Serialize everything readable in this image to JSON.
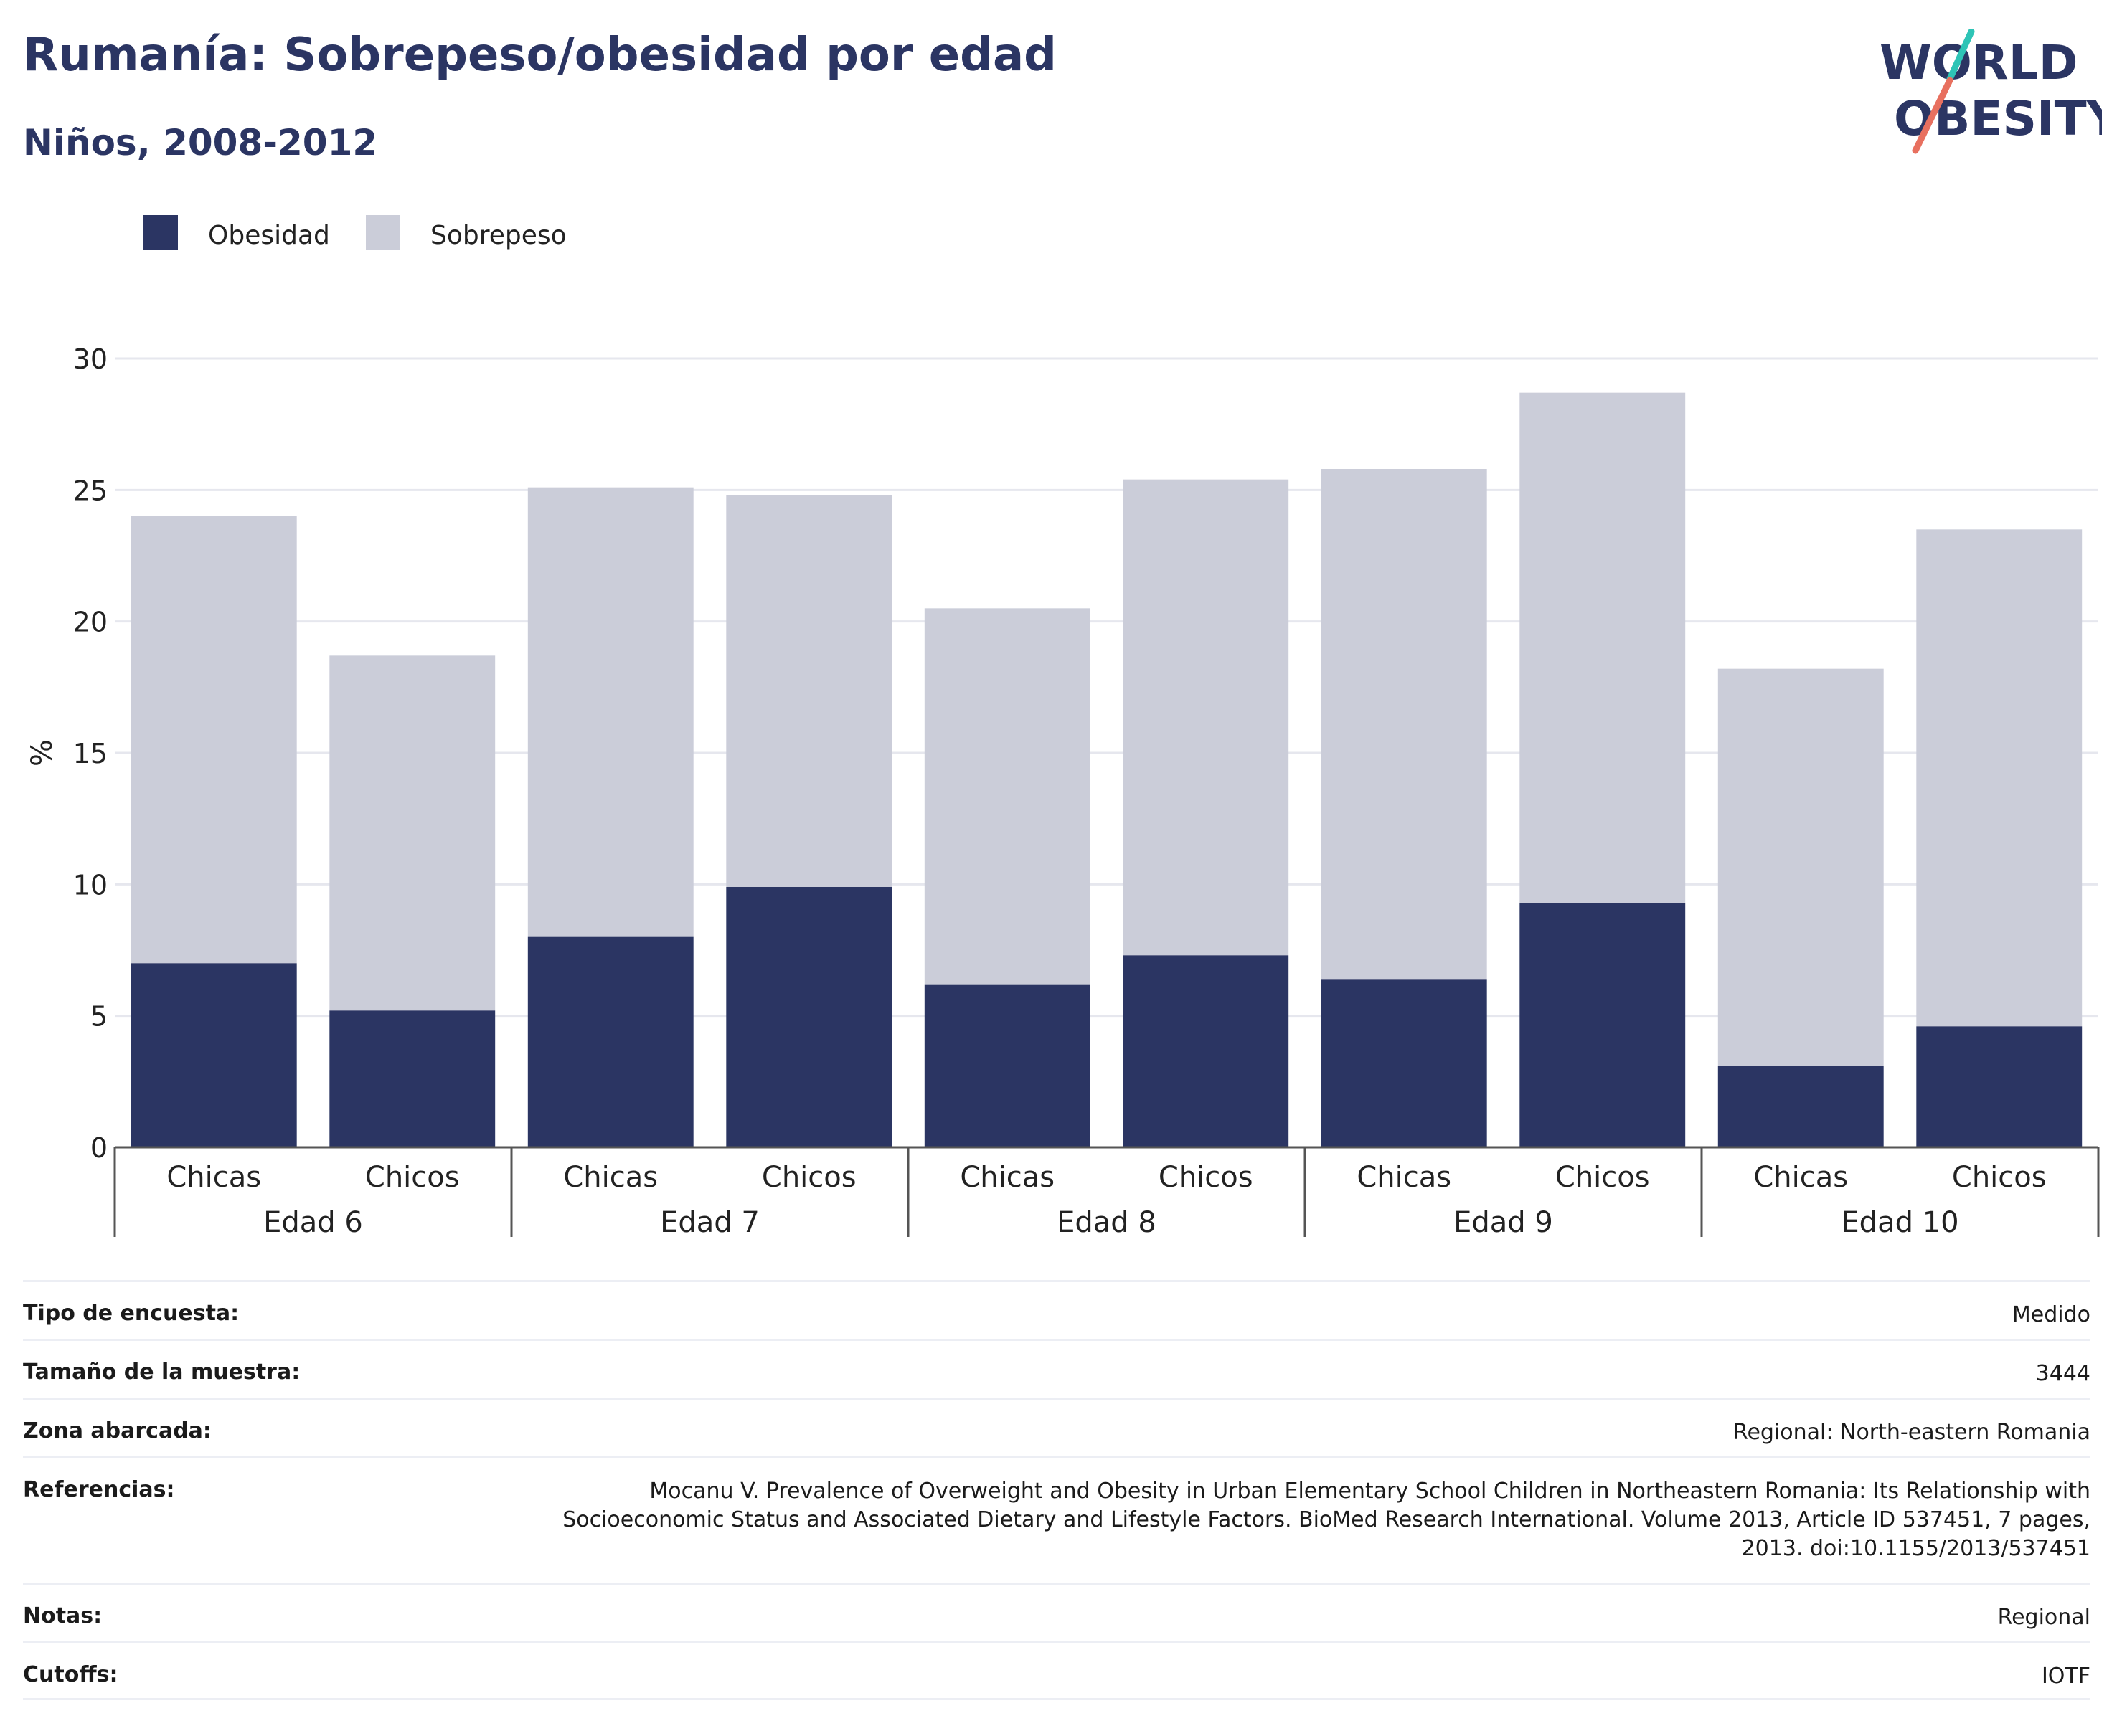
{
  "title": "Rumanía: Sobrepeso/obesidad por edad",
  "subtitle": "Niños, 2008-2012",
  "logo": {
    "line1": "WORLD",
    "line2": "OBESITY"
  },
  "colors": {
    "obesidad": "#2b3563",
    "sobrepeso": "#cbcdd9",
    "title": "#2b3563",
    "logo_slash_top": "#2ec4b6",
    "logo_slash_bottom": "#e8705f"
  },
  "chart_data": {
    "type": "bar",
    "stacked": true,
    "ylabel": "%",
    "ylim": [
      0,
      30
    ],
    "yticks": [
      0,
      5,
      10,
      15,
      20,
      25,
      30
    ],
    "legend": [
      "Obesidad",
      "Sobrepeso"
    ],
    "legend_position": "top-left",
    "grid": true,
    "groups": [
      "Edad 6",
      "Edad 7",
      "Edad 8",
      "Edad 9",
      "Edad 10"
    ],
    "categories": [
      "Chicas",
      "Chicos",
      "Chicas",
      "Chicos",
      "Chicas",
      "Chicos",
      "Chicas",
      "Chicos",
      "Chicas",
      "Chicos"
    ],
    "series": [
      {
        "name": "Obesidad",
        "values": [
          7.0,
          5.2,
          8.0,
          9.9,
          6.2,
          7.3,
          6.4,
          9.3,
          3.1,
          4.6
        ]
      },
      {
        "name": "Sobrepeso",
        "values": [
          17.0,
          13.5,
          17.1,
          14.9,
          14.3,
          18.1,
          19.4,
          19.4,
          15.1,
          18.9
        ]
      }
    ]
  },
  "info": [
    {
      "label": "Tipo de encuesta:",
      "value": "Medido"
    },
    {
      "label": "Tamaño de la muestra:",
      "value": "3444"
    },
    {
      "label": "Zona abarcada:",
      "value": "Regional: North-eastern Romania"
    },
    {
      "label": "Referencias:",
      "value": "Mocanu V. Prevalence of Overweight and Obesity in Urban Elementary School Children in Northeastern Romania: Its Relationship with Socioeconomic Status and Associated Dietary and Lifestyle Factors. BioMed Research International. Volume 2013, Article ID 537451, 7 pages, 2013. doi:10.1155/2013/537451"
    },
    {
      "label": "Notas:",
      "value": "Regional"
    },
    {
      "label": "Cutoffs:",
      "value": "IOTF"
    }
  ]
}
